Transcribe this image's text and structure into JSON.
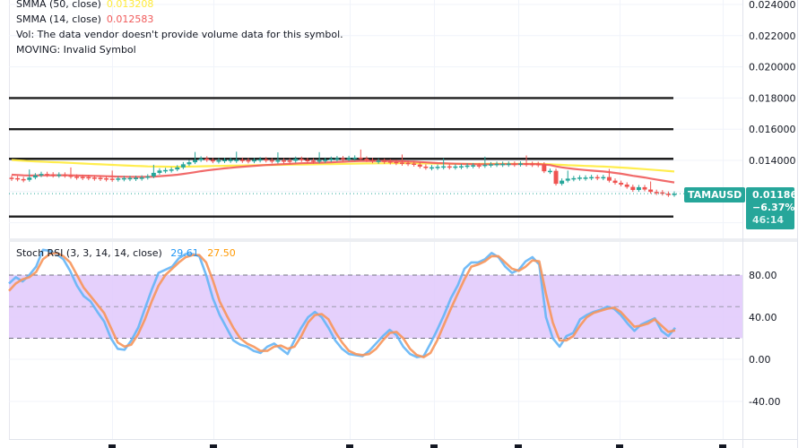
{
  "legend": {
    "smma50_label": "SMMA (50, close)",
    "smma50_value": "0.013208",
    "smma14_label": "SMMA (14, close)",
    "smma14_value": "0.012583",
    "vol_text": "Vol: The data vendor doesn't provide volume data for this symbol.",
    "moving_text": "MOVING: Invalid Symbol"
  },
  "stoch_legend": {
    "label": "Stoch RSI (3, 3, 14, 14, close)",
    "k_value": "29.61",
    "d_value": "27.50"
  },
  "price_tag": {
    "symbol": "TAMAUSD",
    "price": "0.011863",
    "change": "−6.37%",
    "countdown": "46:14"
  },
  "colors": {
    "up": "#26a69a",
    "down": "#ef5350",
    "smma50": "#ffeb3b",
    "smma14": "#f05a5a",
    "stoch_k": "#64b5f6",
    "stoch_d": "#f7955a",
    "band_fill": "#e1c8fc",
    "accent": "#26a69a"
  },
  "chart_data": [
    {
      "type": "candlestick",
      "title": "TAMAUSD",
      "price_axis_ticks": [
        "0.024000",
        "0.022000",
        "0.020000",
        "0.018000",
        "0.016000",
        "0.014000"
      ],
      "ylim": [
        0.0104,
        0.0245
      ],
      "horizontal_levels": [
        0.018,
        0.016,
        0.0141,
        0.0104
      ],
      "last_price": 0.011863,
      "smma50_last": 0.013208,
      "smma14_last": 0.012583,
      "closes": [
        0.01286,
        0.0128,
        0.01275,
        0.0129,
        0.01304,
        0.01313,
        0.0131,
        0.01306,
        0.01309,
        0.01303,
        0.01296,
        0.01294,
        0.01293,
        0.0129,
        0.01288,
        0.01285,
        0.01283,
        0.01282,
        0.01284,
        0.01286,
        0.01287,
        0.01288,
        0.0129,
        0.01297,
        0.0132,
        0.01335,
        0.01338,
        0.01342,
        0.01355,
        0.01375,
        0.01388,
        0.01402,
        0.01412,
        0.01402,
        0.01398,
        0.014,
        0.01403,
        0.01404,
        0.01404,
        0.01401,
        0.01395,
        0.01402,
        0.01407,
        0.01401,
        0.01397,
        0.014,
        0.01399,
        0.01397,
        0.0141,
        0.01403,
        0.01399,
        0.01398,
        0.01401,
        0.01404,
        0.0141,
        0.01414,
        0.01408,
        0.01415,
        0.01418,
        0.01411,
        0.01402,
        0.01396,
        0.01398,
        0.01394,
        0.0139,
        0.01386,
        0.01384,
        0.0138,
        0.01373,
        0.0136,
        0.01355,
        0.01356,
        0.01359,
        0.01362,
        0.0136,
        0.01361,
        0.01363,
        0.01367,
        0.01369,
        0.01366,
        0.01372,
        0.01375,
        0.01378,
        0.01378,
        0.01379,
        0.01378,
        0.0138,
        0.01378,
        0.01377,
        0.01374,
        0.0133,
        0.01333,
        0.0125,
        0.0127,
        0.01283,
        0.01286,
        0.0129,
        0.0129,
        0.01293,
        0.01291,
        0.01293,
        0.0127,
        0.01256,
        0.01245,
        0.0123,
        0.0121,
        0.01228,
        0.01213,
        0.01198,
        0.01195,
        0.01186,
        0.01182,
        0.011863
      ]
    },
    {
      "type": "line",
      "title": "Stoch RSI (3, 3, 14, 14, close)",
      "axis_ticks": [
        "80.00",
        "40.00",
        "0.00",
        "-40.00"
      ],
      "ylim": [
        -60,
        115
      ],
      "bands": {
        "upper": 80,
        "middle": 50,
        "lower": 20
      },
      "series": [
        {
          "name": "K",
          "last": 29.61,
          "values": [
            72,
            78,
            74,
            80,
            88,
            104,
            103,
            100,
            95,
            84,
            70,
            60,
            55,
            45,
            36,
            20,
            10,
            9,
            18,
            30,
            48,
            66,
            82,
            85,
            88,
            96,
            100,
            100,
            98,
            80,
            58,
            42,
            30,
            18,
            14,
            12,
            8,
            6,
            12,
            15,
            10,
            5,
            18,
            30,
            40,
            45,
            40,
            30,
            18,
            10,
            5,
            4,
            3,
            8,
            15,
            22,
            28,
            23,
            12,
            5,
            2,
            3,
            15,
            28,
            42,
            58,
            70,
            86,
            92,
            92,
            95,
            101,
            97,
            88,
            82,
            85,
            93,
            97,
            90,
            40,
            20,
            12,
            22,
            25,
            38,
            42,
            45,
            47,
            50,
            48,
            42,
            34,
            27,
            33,
            36,
            39,
            27,
            22,
            30
          ]
        },
        {
          "name": "D",
          "last": 27.5,
          "values": [
            65,
            72,
            76,
            78,
            83,
            95,
            100,
            101,
            98,
            92,
            80,
            68,
            60,
            52,
            44,
            30,
            16,
            12,
            14,
            24,
            38,
            55,
            70,
            80,
            86,
            92,
            97,
            99,
            99,
            92,
            75,
            55,
            42,
            30,
            20,
            15,
            12,
            8,
            8,
            12,
            13,
            10,
            12,
            22,
            35,
            42,
            43,
            38,
            26,
            16,
            8,
            5,
            4,
            5,
            10,
            18,
            25,
            26,
            20,
            10,
            4,
            2,
            6,
            18,
            33,
            48,
            62,
            76,
            88,
            90,
            93,
            98,
            98,
            92,
            86,
            84,
            88,
            94,
            93,
            62,
            35,
            18,
            18,
            22,
            32,
            40,
            44,
            46,
            48,
            49,
            45,
            38,
            31,
            32,
            34,
            38,
            32,
            26,
            27.5
          ]
        }
      ]
    }
  ]
}
